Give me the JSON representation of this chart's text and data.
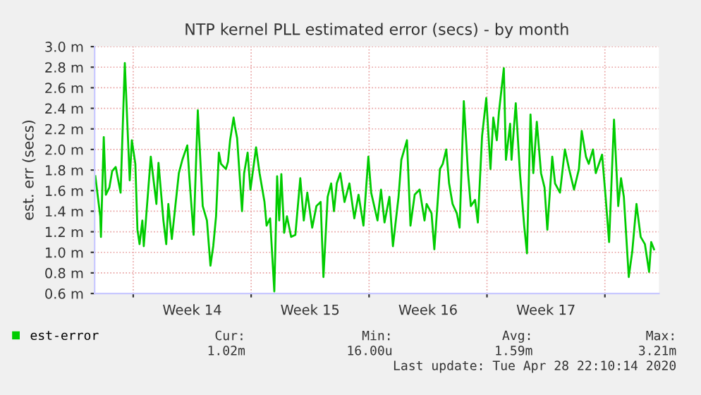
{
  "chart_data": {
    "type": "line",
    "title": "NTP kernel PLL estimated error (secs) - by month",
    "ylabel": "est. err (secs)",
    "x": [
      "2020-03-26T18:00",
      "2020-03-27T01:00",
      "2020-03-27T02:00",
      "2020-03-27T06:00",
      "2020-03-27T09:00",
      "2020-03-27T14:00",
      "2020-03-27T18:00",
      "2020-03-27T23:00",
      "2020-03-28T06:00",
      "2020-03-28T12:00",
      "2020-03-28T19:00",
      "2020-03-28T22:00",
      "2020-03-29T03:00",
      "2020-03-29T06:00",
      "2020-03-29T09:00",
      "2020-03-29T13:00",
      "2020-03-29T15:00",
      "2020-03-29T18:00",
      "2020-03-30T01:00",
      "2020-03-30T09:00",
      "2020-03-30T12:00",
      "2020-03-30T19:00",
      "2020-03-30T23:00",
      "2020-03-31T02:00",
      "2020-03-31T07:00",
      "2020-03-31T12:00",
      "2020-03-31T17:00",
      "2020-03-31T22:00",
      "2020-04-01T05:00",
      "2020-04-01T09:00",
      "2020-04-01T14:00",
      "2020-04-01T20:00",
      "2020-04-02T03:00",
      "2020-04-02T09:00",
      "2020-04-02T14:00",
      "2020-04-02T18:00",
      "2020-04-02T22:00",
      "2020-04-03T02:00",
      "2020-04-03T05:00",
      "2020-04-03T12:00",
      "2020-04-03T15:00",
      "2020-04-03T18:00",
      "2020-04-03T23:00",
      "2020-04-04T01:00",
      "2020-04-04T04:00",
      "2020-04-04T11:00",
      "2020-04-04T14:00",
      "2020-04-04T19:00",
      "2020-04-04T23:00",
      "2020-04-05T07:00",
      "2020-04-05T12:00",
      "2020-04-05T19:00",
      "2020-04-05T22:00",
      "2020-04-06T03:00",
      "2020-04-06T09:00",
      "2020-04-06T13:00",
      "2020-04-06T16:00",
      "2020-04-06T19:00",
      "2020-04-06T23:00",
      "2020-04-07T03:00",
      "2020-04-07T09:00",
      "2020-04-07T15:00",
      "2020-04-07T22:00",
      "2020-04-08T03:00",
      "2020-04-08T08:00",
      "2020-04-08T15:00",
      "2020-04-08T21:00",
      "2020-04-09T03:00",
      "2020-04-09T07:00",
      "2020-04-09T13:00",
      "2020-04-09T18:00",
      "2020-04-09T22:00",
      "2020-04-10T02:00",
      "2020-04-10T07:00",
      "2020-04-10T13:00",
      "2020-04-10T20:00",
      "2020-04-11T03:00",
      "2020-04-11T09:00",
      "2020-04-11T16:00",
      "2020-04-11T23:00",
      "2020-04-12T03:00",
      "2020-04-12T12:00",
      "2020-04-12T17:00",
      "2020-04-12T22:00",
      "2020-04-13T05:00",
      "2020-04-13T10:00",
      "2020-04-13T18:00",
      "2020-04-13T22:00",
      "2020-04-14T06:00",
      "2020-04-14T11:00",
      "2020-04-14T17:00",
      "2020-04-15T00:00",
      "2020-04-15T07:00",
      "2020-04-15T10:00",
      "2020-04-15T17:00",
      "2020-04-15T21:00",
      "2020-04-16T05:00",
      "2020-04-16T09:00",
      "2020-04-16T14:00",
      "2020-04-16T18:00",
      "2020-04-16T23:00",
      "2020-04-17T05:00",
      "2020-04-17T09:00",
      "2020-04-17T15:00",
      "2020-04-17T21:00",
      "2020-04-18T01:00",
      "2020-04-18T07:00",
      "2020-04-18T11:00",
      "2020-04-18T17:00",
      "2020-04-18T23:00",
      "2020-04-19T05:00",
      "2020-04-19T09:00",
      "2020-04-19T14:00",
      "2020-04-19T17:00",
      "2020-04-20T00:00",
      "2020-04-20T03:00",
      "2020-04-20T09:00",
      "2020-04-20T11:00",
      "2020-04-20T17:00",
      "2020-04-20T23:00",
      "2020-04-21T05:00",
      "2020-04-21T09:00",
      "2020-04-21T14:00",
      "2020-04-21T18:00",
      "2020-04-21T23:00",
      "2020-04-22T05:00",
      "2020-04-22T10:00",
      "2020-04-22T14:00",
      "2020-04-22T21:00",
      "2020-04-23T01:00",
      "2020-04-23T08:00",
      "2020-04-23T15:00",
      "2020-04-23T21:00",
      "2020-04-24T04:00",
      "2020-04-24T11:00",
      "2020-04-24T15:00",
      "2020-04-24T21:00",
      "2020-04-25T01:00",
      "2020-04-25T07:00",
      "2020-04-25T11:00",
      "2020-04-25T20:00",
      "2020-04-26T01:00",
      "2020-04-26T06:00",
      "2020-04-26T13:00",
      "2020-04-26T19:00",
      "2020-04-26T23:00",
      "2020-04-27T03:00",
      "2020-04-27T10:00",
      "2020-04-27T15:00",
      "2020-04-27T21:00",
      "2020-04-28T03:00",
      "2020-04-28T09:00",
      "2020-04-28T15:00",
      "2020-04-28T18:00",
      "2020-04-28T22:00"
    ],
    "series": [
      {
        "name": "est-error",
        "color": "#00cc00",
        "values": [
          1.74,
          1.35,
          1.15,
          2.12,
          1.56,
          1.63,
          1.79,
          1.83,
          1.58,
          2.84,
          1.7,
          2.09,
          1.86,
          1.22,
          1.08,
          1.31,
          1.06,
          1.31,
          1.93,
          1.47,
          1.87,
          1.31,
          1.08,
          1.47,
          1.13,
          1.45,
          1.77,
          1.9,
          2.04,
          1.63,
          1.17,
          2.38,
          1.45,
          1.31,
          0.87,
          1.06,
          1.35,
          1.97,
          1.86,
          1.81,
          1.88,
          2.09,
          2.31,
          2.22,
          2.11,
          1.4,
          1.77,
          1.97,
          1.61,
          2.02,
          1.77,
          1.49,
          1.26,
          1.33,
          0.62,
          1.74,
          1.31,
          1.76,
          1.19,
          1.35,
          1.15,
          1.17,
          1.72,
          1.31,
          1.58,
          1.24,
          1.45,
          1.49,
          0.76,
          1.54,
          1.67,
          1.4,
          1.67,
          1.77,
          1.49,
          1.67,
          1.33,
          1.56,
          1.26,
          1.93,
          1.58,
          1.31,
          1.61,
          1.29,
          1.54,
          1.06,
          1.54,
          1.9,
          2.09,
          1.26,
          1.56,
          1.61,
          1.31,
          1.47,
          1.38,
          1.03,
          1.81,
          1.86,
          2.0,
          1.67,
          1.47,
          1.38,
          1.24,
          2.47,
          1.77,
          1.45,
          1.51,
          1.29,
          2.13,
          2.5,
          1.81,
          2.31,
          2.09,
          2.36,
          2.79,
          1.9,
          2.25,
          1.9,
          2.45,
          1.77,
          1.26,
          0.99,
          2.34,
          1.77,
          2.27,
          1.77,
          1.63,
          1.22,
          1.93,
          1.67,
          1.58,
          2.0,
          1.81,
          1.61,
          1.81,
          2.18,
          1.93,
          1.86,
          2.0,
          1.77,
          1.95,
          1.54,
          1.1,
          2.29,
          1.45,
          1.72,
          1.54,
          0.76,
          1.01,
          1.47,
          1.15,
          1.08,
          0.81,
          1.1,
          1.03
        ]
      }
    ],
    "xlim": [
      "2020-03-26T17:00",
      "2020-04-29T05:00"
    ],
    "xticks": [
      {
        "value": "2020-03-29",
        "label": null
      },
      {
        "value": "2020-04-01T12:00",
        "label": "Week 14"
      },
      {
        "value": "2020-04-05",
        "label": null
      },
      {
        "value": "2020-04-08T12:00",
        "label": "Week 15"
      },
      {
        "value": "2020-04-12",
        "label": null
      },
      {
        "value": "2020-04-15T12:00",
        "label": "Week 16"
      },
      {
        "value": "2020-04-19",
        "label": null
      },
      {
        "value": "2020-04-22T12:00",
        "label": "Week 17"
      },
      {
        "value": "2020-04-26",
        "label": null
      }
    ],
    "ylim": [
      0.6,
      3.0
    ],
    "yticks": [
      {
        "value": 0.6,
        "label": "0.6 m"
      },
      {
        "value": 0.8,
        "label": "0.8 m"
      },
      {
        "value": 1.0,
        "label": "1.0 m"
      },
      {
        "value": 1.2,
        "label": "1.2 m"
      },
      {
        "value": 1.4,
        "label": "1.4 m"
      },
      {
        "value": 1.6,
        "label": "1.6 m"
      },
      {
        "value": 1.8,
        "label": "1.8 m"
      },
      {
        "value": 2.0,
        "label": "2.0 m"
      },
      {
        "value": 2.2,
        "label": "2.2 m"
      },
      {
        "value": 2.4,
        "label": "2.4 m"
      },
      {
        "value": 2.6,
        "label": "2.6 m"
      },
      {
        "value": 2.8,
        "label": "2.8 m"
      },
      {
        "value": 3.0,
        "label": "3.0 m"
      }
    ],
    "grid": true,
    "legend": "bottom",
    "marker": "none",
    "line_style": "solid",
    "annotations": [
      "Cur:",
      "Min:",
      "Avg:",
      "Max:",
      "1.02m",
      "16.00u",
      "1.59m",
      "3.21m",
      "Last update: Tue Apr 28 22:10:14 2020"
    ]
  }
}
